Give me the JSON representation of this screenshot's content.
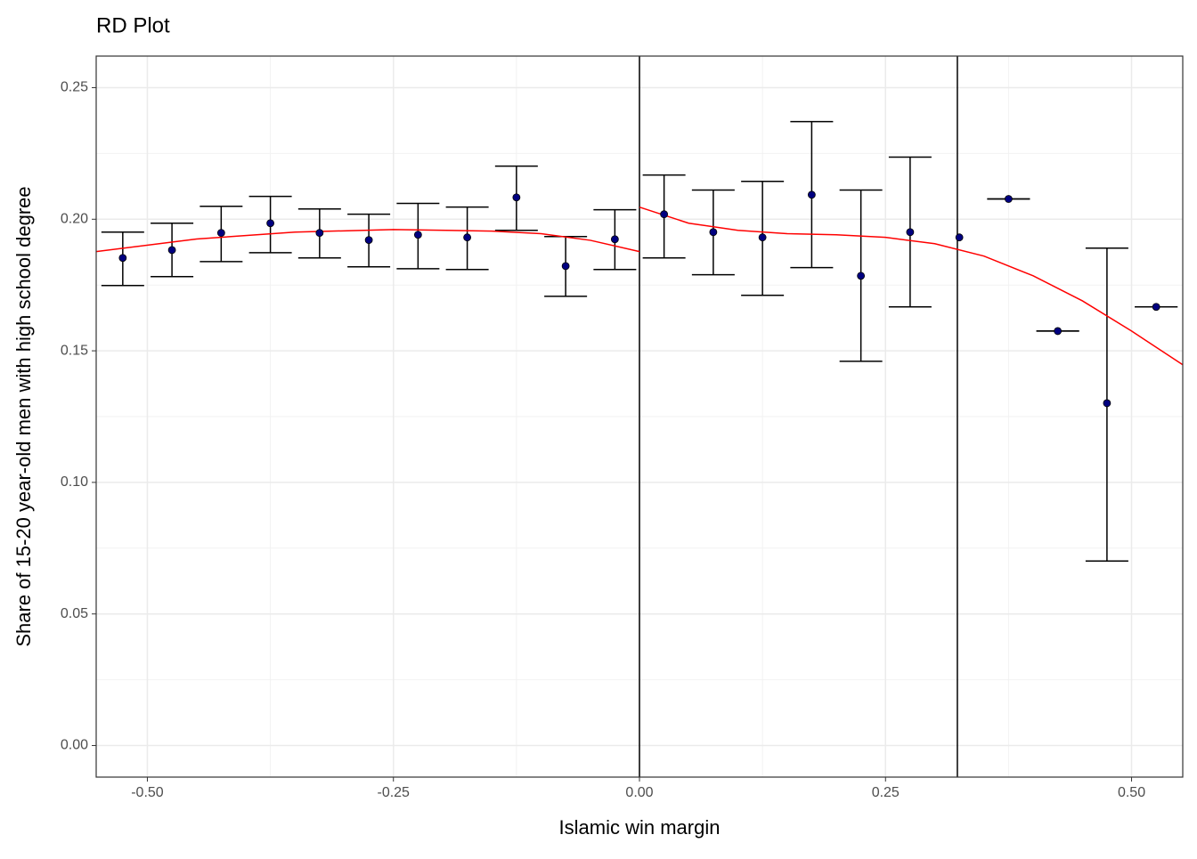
{
  "chart_data": {
    "type": "rdplot",
    "title": "RD Plot",
    "x_label": "Islamic win margin",
    "y_label": "Share of 15-20 year-old men with high school degree",
    "xlim": [
      -0.552,
      0.552
    ],
    "ylim": [
      -0.012,
      0.262
    ],
    "xticks": [
      {
        "value": -0.5,
        "label": "-0.50"
      },
      {
        "value": -0.25,
        "label": "-0.25"
      },
      {
        "value": 0,
        "label": "0.00"
      },
      {
        "value": 0.25,
        "label": "0.25"
      },
      {
        "value": 0.5,
        "label": "0.50"
      }
    ],
    "yticks": [
      {
        "value": 0,
        "label": "0.00"
      },
      {
        "value": 0.05,
        "label": "0.05"
      },
      {
        "value": 0.1,
        "label": "0.10"
      },
      {
        "value": 0.15,
        "label": "0.15"
      },
      {
        "value": 0.2,
        "label": "0.20"
      },
      {
        "value": 0.25,
        "label": "0.25"
      }
    ],
    "x_minor_ticks": [
      -0.375,
      -0.125,
      0.125,
      0.375
    ],
    "y_minor_ticks": [
      0.025,
      0.075,
      0.125,
      0.175,
      0.225
    ],
    "grid": true,
    "cutoff_lines": [
      0,
      0.323
    ],
    "points": {
      "color": "#000080",
      "x": [
        -0.525,
        -0.475,
        -0.425,
        -0.375,
        -0.325,
        -0.275,
        -0.225,
        -0.175,
        -0.125,
        -0.075,
        -0.025,
        0.025,
        0.075,
        0.125,
        0.175,
        0.225,
        0.275,
        0.325,
        0.375,
        0.425,
        0.475,
        0.525
      ],
      "values": [
        0.1853,
        0.1883,
        0.1948,
        0.1985,
        0.1948,
        0.1921,
        0.1941,
        0.1931,
        0.2083,
        0.1822,
        0.1924,
        0.2019,
        0.1951,
        0.1931,
        0.2093,
        0.1785,
        0.1951,
        0.1931,
        0.2077,
        0.1575,
        0.1301,
        0.1667
      ],
      "ci_low": [
        0.1748,
        0.1782,
        0.1839,
        0.1873,
        0.1853,
        0.1819,
        0.1812,
        0.1809,
        0.1958,
        0.1707,
        0.1809,
        0.1853,
        0.1789,
        0.1711,
        0.1816,
        0.146,
        0.1667,
        null,
        0.2077,
        0.1575,
        0.0701,
        0.1667
      ],
      "ci_high": [
        0.1951,
        0.1985,
        0.2049,
        0.2087,
        0.2039,
        0.2019,
        0.206,
        0.2046,
        0.2202,
        0.1934,
        0.2036,
        0.2168,
        0.2111,
        0.2144,
        0.2371,
        0.2111,
        0.2236,
        null,
        0.2077,
        0.1575,
        0.189,
        0.1667
      ]
    },
    "fits": [
      {
        "color": "#ff0000",
        "x": [
          -0.552,
          -0.45,
          -0.35,
          -0.25,
          -0.15,
          -0.1,
          -0.05,
          0
        ],
        "values": [
          0.1877,
          0.1925,
          0.1951,
          0.1961,
          0.1955,
          0.1945,
          0.192,
          0.1877
        ]
      },
      {
        "color": "#ff0000",
        "x": [
          0,
          0.05,
          0.1,
          0.15,
          0.2,
          0.25,
          0.3,
          0.35,
          0.4,
          0.45,
          0.5,
          0.552
        ],
        "values": [
          0.2046,
          0.1985,
          0.1958,
          0.1945,
          0.1941,
          0.1931,
          0.1907,
          0.186,
          0.1785,
          0.169,
          0.1575,
          0.1447
        ]
      }
    ]
  }
}
